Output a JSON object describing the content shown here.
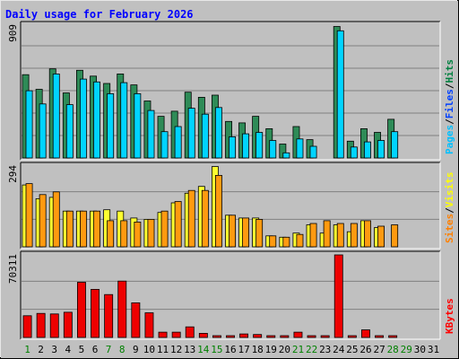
{
  "chart_data": {
    "type": "bar",
    "title": "Daily usage for February 2026",
    "categories": [
      "1",
      "2",
      "3",
      "4",
      "5",
      "6",
      "7",
      "8",
      "9",
      "10",
      "11",
      "12",
      "13",
      "14",
      "15",
      "16",
      "17",
      "18",
      "19",
      "20",
      "21",
      "22",
      "23",
      "24",
      "25",
      "26",
      "27",
      "28",
      "29",
      "30",
      "31"
    ],
    "weekend_days": [
      "1",
      "7",
      "8",
      "14",
      "15",
      "21",
      "22",
      "28",
      "29"
    ],
    "colors": {
      "title": "#0000ff",
      "pages": "#00c0ff",
      "files": "#0040ff",
      "hits": "#008040",
      "sites": "#ff8000",
      "visits": "#ffff00",
      "kbytes": "#ff0000",
      "weekday_label": "#000000",
      "weekend_label": "#008000"
    },
    "panels": [
      {
        "key": "hits_files_pages",
        "ylim": [
          0,
          909
        ],
        "max_label": "909",
        "legend": [
          {
            "text": "Pages",
            "color": "#00c0ff"
          },
          {
            "text": "Files",
            "color": "#0040ff"
          },
          {
            "text": "Hits",
            "color": "#008040"
          }
        ],
        "series": [
          {
            "name": "Hits",
            "color": "#2e8b57",
            "values": [
              570,
              470,
              610,
              445,
              600,
              560,
              510,
              575,
              500,
              390,
              285,
              320,
              450,
              415,
              430,
              250,
              240,
              285,
              200,
              95,
              215,
              125,
              0,
              900,
              115,
              200,
              175,
              265,
              0,
              0,
              0
            ]
          },
          {
            "name": "Pages",
            "color": "#00d4ff",
            "values": [
              460,
              370,
              575,
              365,
              540,
              520,
              440,
              515,
              440,
              325,
              180,
              215,
              340,
              300,
              345,
              145,
              165,
              175,
              120,
              35,
              130,
              80,
              0,
              870,
              75,
              110,
              120,
              180,
              0,
              0,
              0
            ]
          }
        ]
      },
      {
        "key": "visits_sites",
        "ylim": [
          0,
          294
        ],
        "max_label": "294",
        "legend": [
          {
            "text": "Sites",
            "color": "#ff8000"
          },
          {
            "text": "Visits",
            "color": "#ffff00"
          }
        ],
        "series": [
          {
            "name": "Visits",
            "color": "#ffff30",
            "values": [
              225,
              175,
              180,
              130,
              130,
              130,
              135,
              130,
              105,
              100,
              125,
              160,
              195,
              220,
              292,
              115,
              105,
              105,
              40,
              35,
              50,
              80,
              50,
              80,
              55,
              95,
              70,
              0,
              0,
              0,
              0
            ]
          },
          {
            "name": "Sites",
            "color": "#ff9a10",
            "values": [
              230,
              190,
              200,
              130,
              130,
              130,
              95,
              95,
              90,
              100,
              130,
              165,
              205,
              205,
              260,
              115,
              105,
              100,
              40,
              35,
              45,
              85,
              95,
              85,
              85,
              95,
              75,
              80,
              0,
              0,
              0
            ]
          }
        ]
      },
      {
        "key": "kbytes",
        "ylim": [
          0,
          70311
        ],
        "max_label": "70311",
        "legend": [
          {
            "text": "KBytes",
            "color": "#ff0000"
          }
        ],
        "series": [
          {
            "name": "KBytes",
            "color": "#ee0000",
            "values": [
              18500,
              20500,
              20000,
              21500,
              47000,
              41000,
              36500,
              48000,
              29500,
              21000,
              4500,
              4500,
              9000,
              3500,
              1500,
              1500,
              3000,
              2500,
              1500,
              1500,
              4500,
              1500,
              1500,
              70311,
              1500,
              6500,
              1500,
              1500,
              0,
              0,
              0
            ]
          }
        ]
      }
    ]
  }
}
